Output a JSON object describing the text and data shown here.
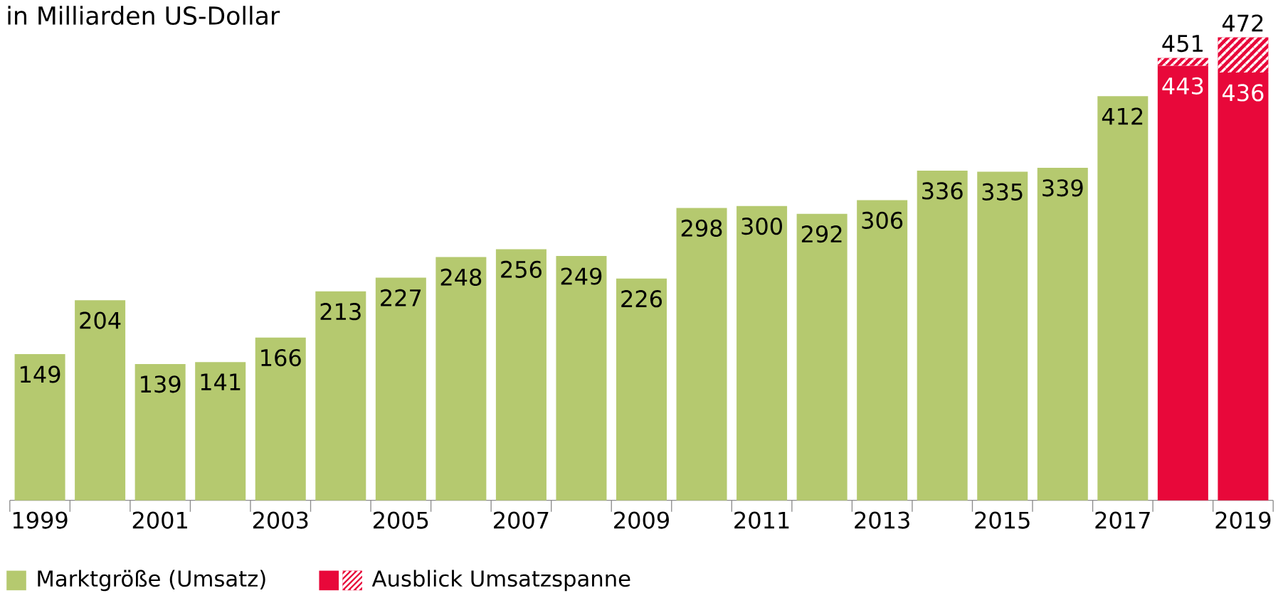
{
  "chart_data": {
    "type": "bar",
    "title": "in Milliarden US-Dollar",
    "stacked": true,
    "legend": "bottom",
    "categories": [
      "1999",
      null,
      "2001",
      null,
      "2003",
      null,
      "2005",
      null,
      "2007",
      null,
      "2009",
      null,
      "2011",
      null,
      "2013",
      null,
      "2015",
      null,
      "2017",
      null,
      "2019"
    ],
    "series": [
      {
        "name": "Marktgröße (Umsatz)",
        "color": "#b5c96f",
        "values": [
          149,
          204,
          139,
          141,
          166,
          213,
          227,
          248,
          256,
          249,
          226,
          298,
          300,
          292,
          306,
          336,
          335,
          339,
          412,
          null,
          null
        ],
        "value_labels": [
          "149",
          "204",
          "139",
          "141",
          "166",
          "213",
          "227",
          "248",
          "256",
          "249",
          "226",
          "298",
          "300",
          "292",
          "306",
          "336",
          "335",
          "339",
          "412",
          null,
          null
        ]
      },
      {
        "name": "Ausblick Umsatzspanne",
        "color": "#e8083a",
        "values": [
          null,
          null,
          null,
          null,
          null,
          null,
          null,
          null,
          null,
          null,
          null,
          null,
          null,
          null,
          null,
          null,
          null,
          null,
          null,
          443,
          436
        ],
        "value_labels": [
          null,
          null,
          null,
          null,
          null,
          null,
          null,
          null,
          null,
          null,
          null,
          null,
          null,
          null,
          null,
          null,
          null,
          null,
          null,
          "443",
          "436"
        ]
      },
      {
        "color": "#e8083a",
        "values": [
          null,
          null,
          null,
          null,
          null,
          null,
          null,
          null,
          null,
          null,
          null,
          null,
          null,
          null,
          null,
          null,
          null,
          null,
          null,
          8,
          36
        ]
      }
    ],
    "totals": [
      null,
      null,
      null,
      null,
      null,
      null,
      null,
      null,
      null,
      null,
      null,
      null,
      null,
      null,
      null,
      null,
      null,
      null,
      null,
      "451",
      "472"
    ]
  }
}
